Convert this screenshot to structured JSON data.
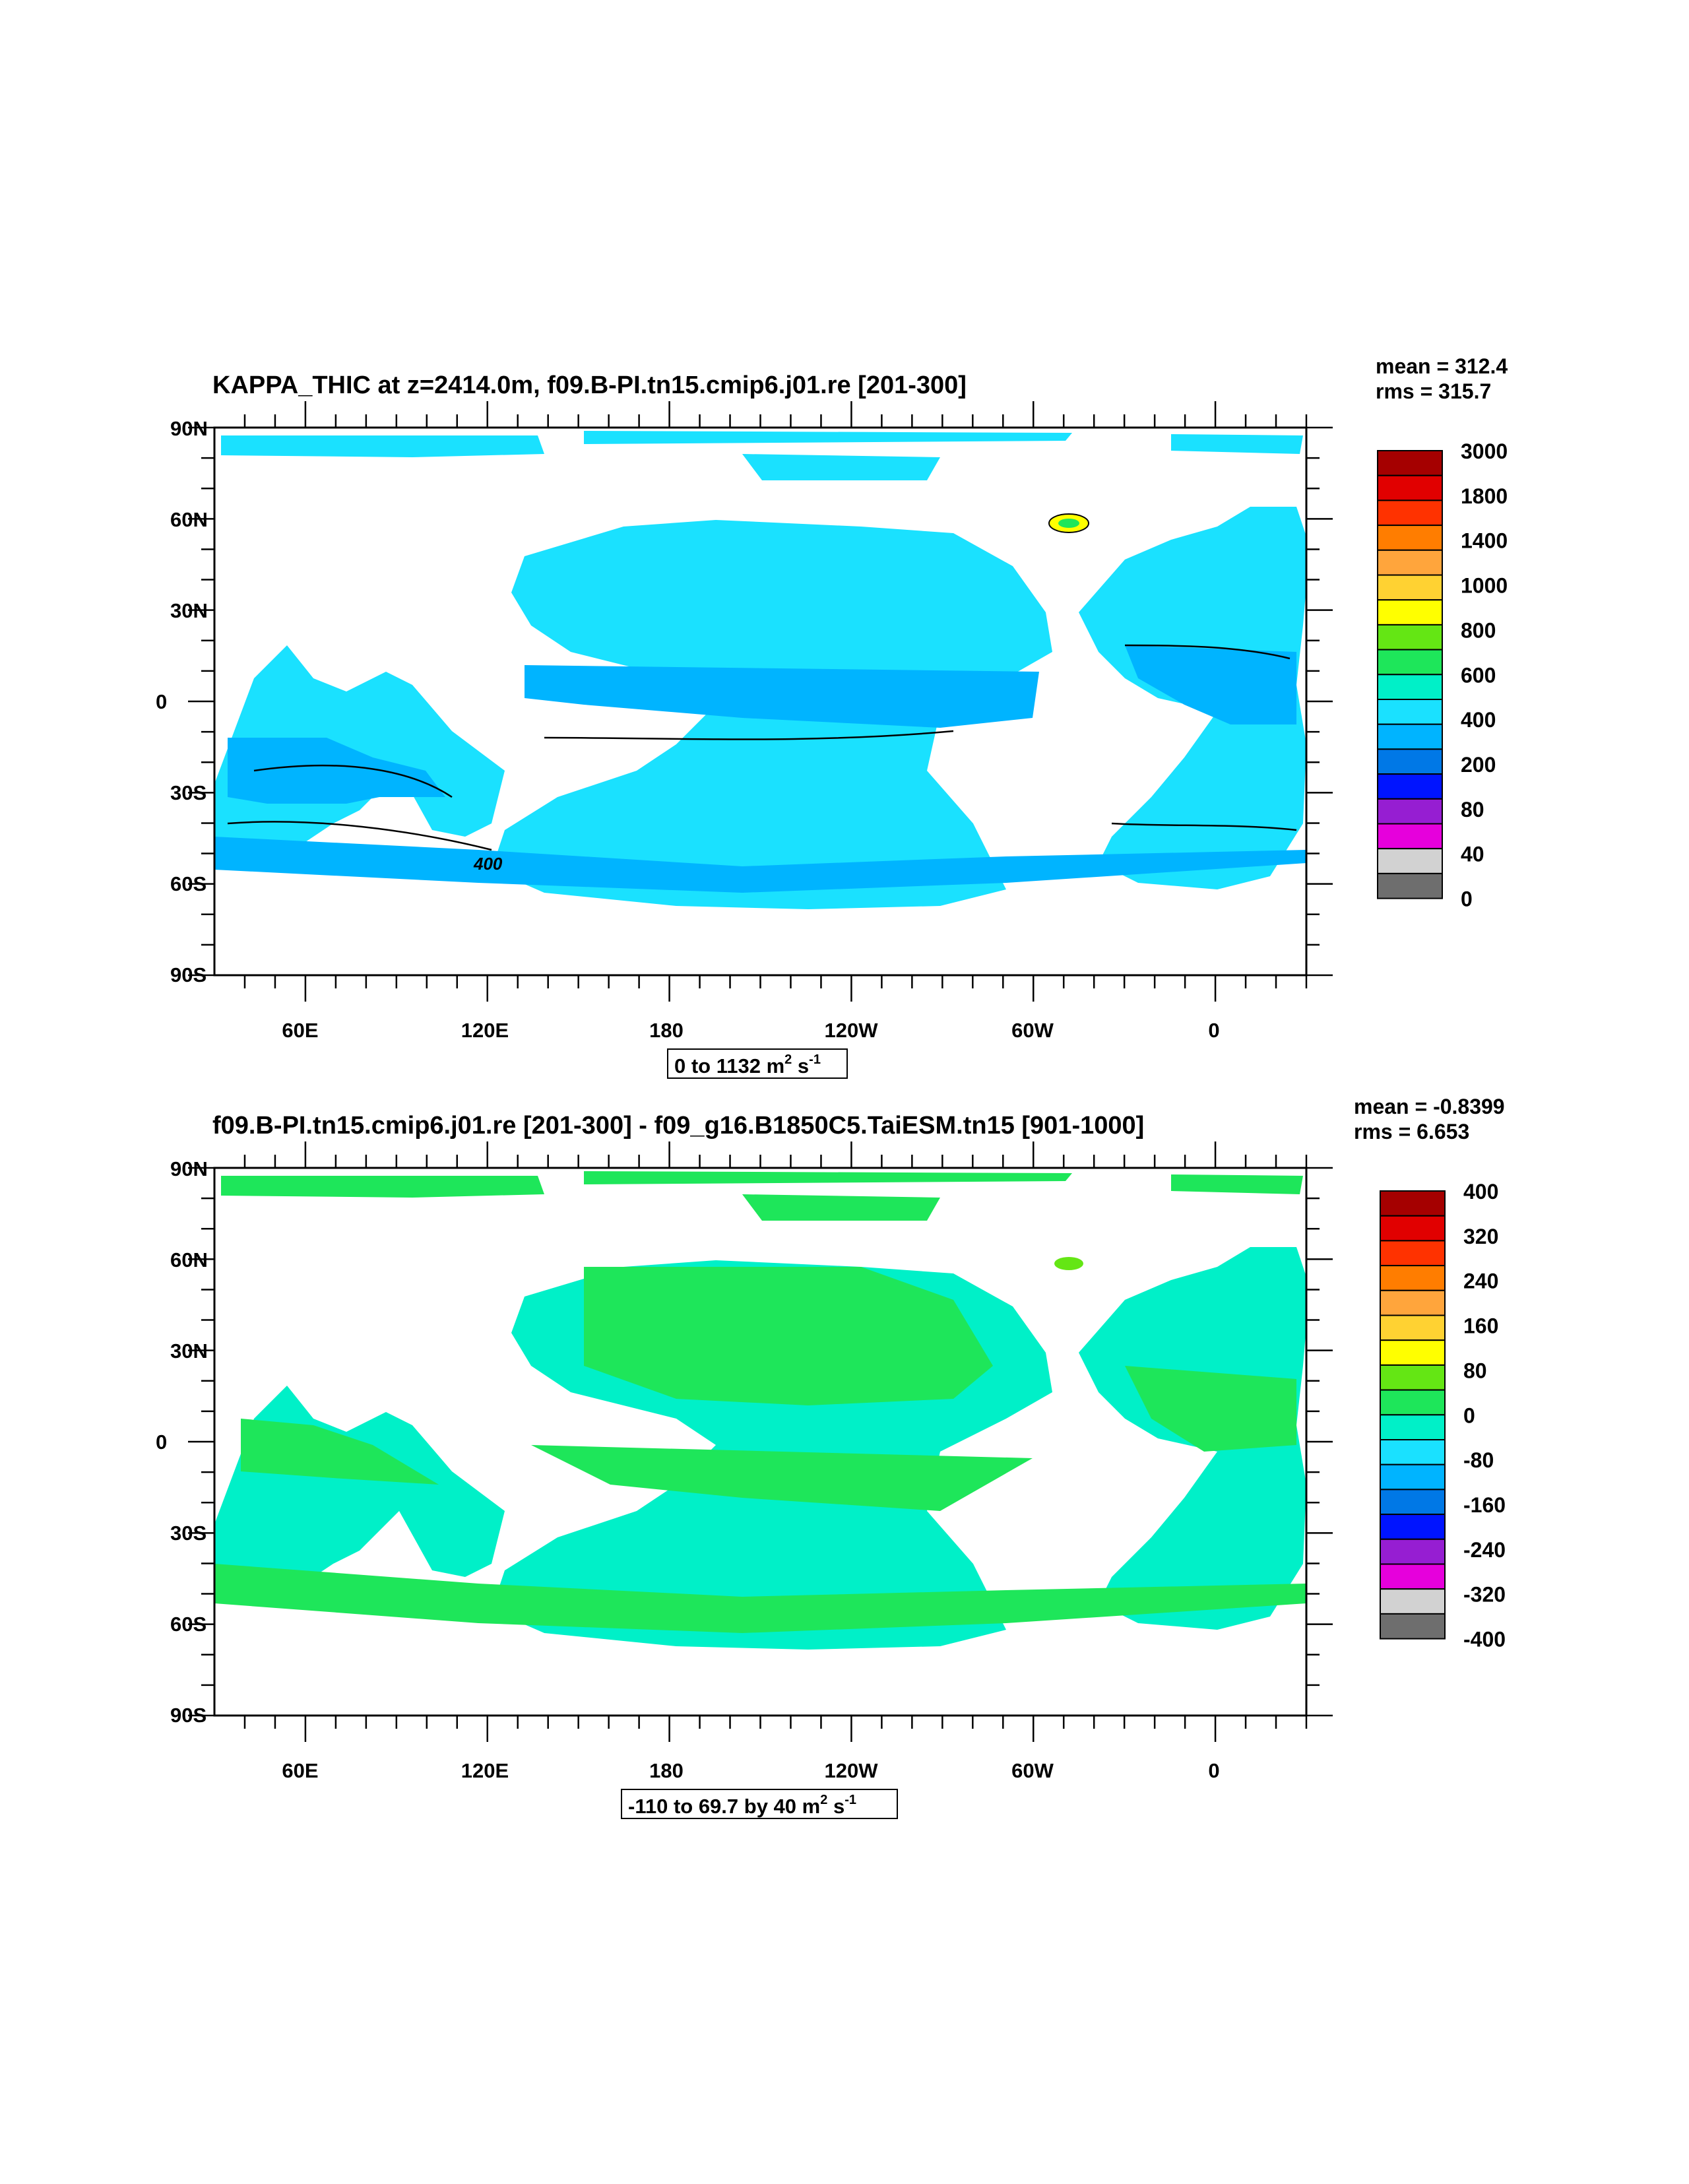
{
  "panels": [
    {
      "title": "KAPPA_THIC at z=2414.0m, f09.B-PI.tn15.cmip6.j01.re [201-300]",
      "mean": "mean = 312.4",
      "rms": "rms = 315.7",
      "range_text": "0 to 1132 m",
      "colorbar_labels": [
        "3000",
        "1800",
        "1400",
        "1000",
        "800",
        "600",
        "400",
        "200",
        "80",
        "40",
        "0"
      ],
      "ocean_color": "#1ae1ff",
      "band_color": "#00b4ff",
      "contour_label": "400"
    },
    {
      "title": "f09.B-PI.tn15.cmip6.j01.re [201-300] - f09_g16.B1850C5.TaiESM.tn15 [901-1000]",
      "mean": "mean = -0.8399",
      "rms": "rms = 6.653",
      "range_text": "-110 to 69.7 by 40 m",
      "colorbar_labels": [
        "400",
        "320",
        "240",
        "160",
        "80",
        "0",
        "-80",
        "-160",
        "-240",
        "-320",
        "-400"
      ],
      "ocean_color": "#00f0c8",
      "band_color": "#1ee65a"
    }
  ],
  "axes": {
    "lat_labels": [
      "90N",
      "60N",
      "30N",
      "0",
      "30S",
      "60S",
      "90S"
    ],
    "lon_labels": [
      "60E",
      "120E",
      "180",
      "120W",
      "60W",
      "0"
    ]
  },
  "colorbar_colors": [
    "#a50000",
    "#e10000",
    "#ff3200",
    "#ff7d00",
    "#ffa53c",
    "#ffd232",
    "#ffff00",
    "#64e614",
    "#1ee65a",
    "#00f0c8",
    "#1ae1ff",
    "#00b4ff",
    "#0078e6",
    "#0014ff",
    "#961ed2",
    "#e600dc",
    "#d2d2d2",
    "#6e6e6e"
  ],
  "unit_sup": {
    "m_sup": "2",
    "s_sup": "-1",
    "s": "s"
  }
}
